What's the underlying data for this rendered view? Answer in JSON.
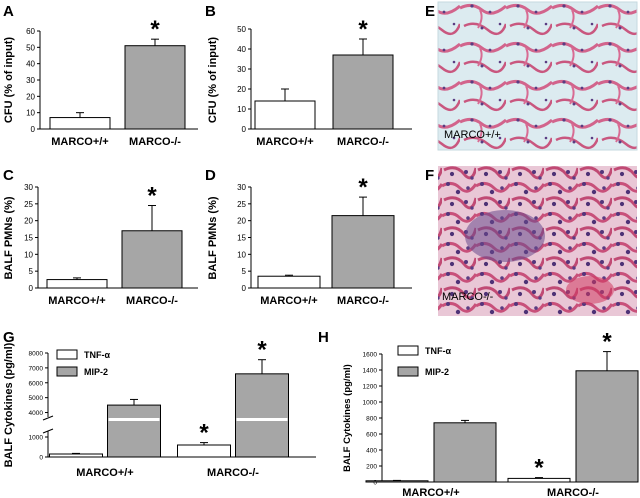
{
  "colors": {
    "white_bar": "#ffffff",
    "gray_bar": "#a6a6a6",
    "axis": "#000000",
    "tissue_bg": "#dcebf0",
    "tissue_stain": "#d2648c",
    "nuclei": "#5a3c82"
  },
  "chart_data": [
    {
      "id": "A",
      "letter": "A",
      "type": "bar",
      "ylabel": "CFU (% of input)",
      "categories": [
        "MARCO+/+",
        "MARCO-/-"
      ],
      "values": [
        7,
        51
      ],
      "errors": [
        3,
        4
      ],
      "significance": [
        "",
        "*"
      ],
      "ylim": [
        0,
        60
      ],
      "yticks": [
        0,
        10,
        20,
        30,
        40,
        50,
        60
      ]
    },
    {
      "id": "B",
      "letter": "B",
      "type": "bar",
      "ylabel": "CFU (% of input)",
      "categories": [
        "MARCO+/+",
        "MARCO-/-"
      ],
      "values": [
        14,
        37
      ],
      "errors": [
        6,
        8
      ],
      "significance": [
        "",
        "*"
      ],
      "ylim": [
        0,
        50
      ],
      "yticks": [
        0,
        10,
        20,
        30,
        40,
        50
      ]
    },
    {
      "id": "C",
      "letter": "C",
      "type": "bar",
      "ylabel": "BALF PMNs (%)",
      "categories": [
        "MARCO+/+",
        "MARCO-/-"
      ],
      "values": [
        2.5,
        17
      ],
      "errors": [
        0.5,
        7.5
      ],
      "significance": [
        "",
        "*"
      ],
      "ylim": [
        0,
        30
      ],
      "yticks": [
        0,
        5,
        10,
        15,
        20,
        25,
        30
      ]
    },
    {
      "id": "D",
      "letter": "D",
      "type": "bar",
      "ylabel": "BALF PMNs (%)",
      "categories": [
        "MARCO+/+",
        "MARCO-/-"
      ],
      "values": [
        3.5,
        21.5
      ],
      "errors": [
        0.3,
        5.5
      ],
      "significance": [
        "",
        "*"
      ],
      "ylim": [
        0,
        30
      ],
      "yticks": [
        0,
        5,
        10,
        15,
        20,
        25,
        30
      ]
    },
    {
      "id": "G",
      "letter": "G",
      "type": "bar",
      "ylabel": "BALF Cytokines (pg/ml)",
      "categories": [
        "MARCO+/+",
        "MARCO-/-"
      ],
      "series": [
        {
          "name": "TNF-α",
          "values": [
            150,
            600
          ],
          "errors": [
            30,
            120
          ],
          "significance": [
            "",
            "*"
          ]
        },
        {
          "name": "MIP-2",
          "values": [
            4500,
            6600
          ],
          "errors": [
            380,
            950
          ],
          "significance": [
            "",
            "*"
          ]
        }
      ],
      "axis_break": true,
      "ylim": [
        0,
        8000
      ],
      "yticks": [
        0,
        1000,
        4000,
        5000,
        6000,
        7000,
        8000
      ]
    },
    {
      "id": "H",
      "letter": "H",
      "type": "bar",
      "ylabel": "BALF Cytokines (pg/ml)",
      "categories": [
        "MARCO+/+",
        "MARCO-/-"
      ],
      "series": [
        {
          "name": "TNF-α",
          "values": [
            15,
            45
          ],
          "errors": [
            5,
            10
          ],
          "significance": [
            "",
            "*"
          ]
        },
        {
          "name": "MIP-2",
          "values": [
            740,
            1390
          ],
          "errors": [
            30,
            240
          ],
          "significance": [
            "",
            "*"
          ]
        }
      ],
      "ylim": [
        0,
        1600
      ],
      "yticks": [
        0,
        200,
        400,
        600,
        800,
        1000,
        1200,
        1400,
        1600
      ]
    }
  ],
  "micrographs": [
    {
      "letter": "E",
      "label": "MARCO+/+"
    },
    {
      "letter": "F",
      "label": "MARCO-/-"
    }
  ]
}
